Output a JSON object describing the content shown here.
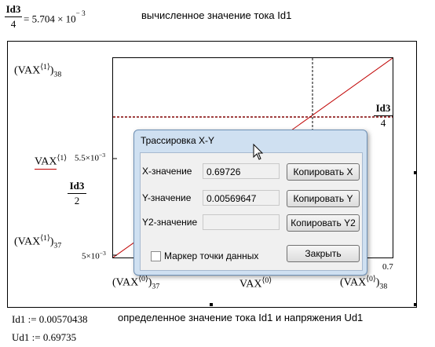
{
  "formula_top": {
    "numerator": "Id3",
    "denominator": "4",
    "value": "= 5.704 × 10",
    "exponent": "− 3",
    "comment": "вычисленное значение тока Id1"
  },
  "plot": {
    "y_labels": {
      "top_base": "(VAX",
      "top_sup": "⟨1⟩",
      "top_sub": "38",
      "mid_tick": "5.5×10",
      "mid_tick_exp": "−3",
      "mid_series": "VAX",
      "mid_series_sup": "⟨1⟩",
      "mid_frac_num": "Id3",
      "mid_frac_den": "2",
      "bottom_base": "(VAX",
      "bottom_sup": "⟨1⟩",
      "bottom_sub": "37",
      "bottom_tick": "5×10",
      "bottom_tick_exp": "−3"
    },
    "x_labels": {
      "left_base": "(VAX",
      "left_sup": "⟨0⟩",
      "left_sub": "37",
      "mid_series": "VAX",
      "mid_series_sup": "⟨0⟩",
      "right_base": "(VAX",
      "right_sup": "⟨0⟩",
      "right_sub": "38",
      "right_tick": "0.7"
    },
    "marker_label_num": "Id3",
    "marker_label_den": "4",
    "line_color": "#c00000",
    "marker_color": "#800000"
  },
  "dialog": {
    "title": "Трассировка X-Y",
    "x_label": "X-значение",
    "x_value": "0.69726",
    "y_label": "Y-значение",
    "y_value": "0.00569647",
    "y2_label": "Y2-значение",
    "y2_value": "",
    "copy_x": "Копировать X",
    "copy_y": "Копировать Y",
    "copy_y2": "Копировать Y2",
    "checkbox_label": "Маркер точки данных",
    "checkbox_checked": false,
    "close": "Закрыть"
  },
  "bottom": {
    "id1_def": "Id1 := 0.00570438",
    "ud1_def": "Ud1 := 0.69735",
    "comment": "определенное значение тока Id1 и напряжения Ud1"
  }
}
